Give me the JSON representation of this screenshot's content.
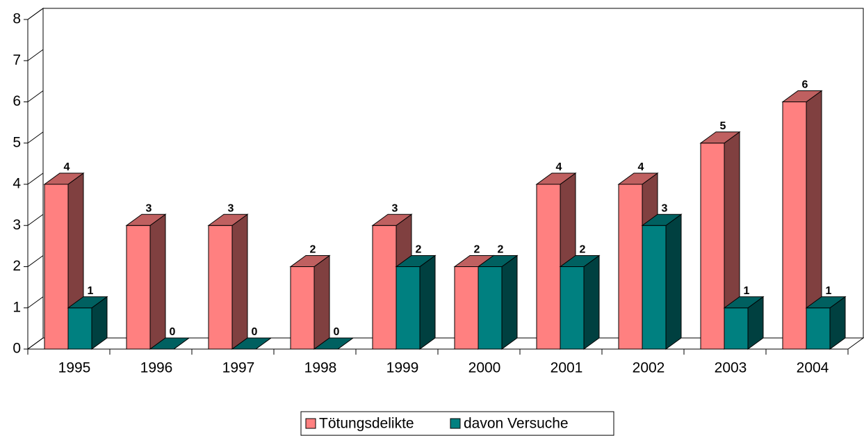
{
  "chart_data": {
    "type": "bar3d",
    "categories": [
      "1995",
      "1996",
      "1997",
      "1998",
      "1999",
      "2000",
      "2001",
      "2002",
      "2003",
      "2004"
    ],
    "series": [
      {
        "name": "Tötungsdelikte",
        "color": "#FF8080",
        "values": [
          4,
          3,
          3,
          2,
          3,
          2,
          4,
          4,
          5,
          6
        ]
      },
      {
        "name": "davon Versuche",
        "color": "#008080",
        "values": [
          1,
          0,
          0,
          0,
          2,
          2,
          2,
          3,
          1,
          1
        ]
      }
    ],
    "ylim": [
      0,
      8
    ],
    "yticks": [
      0,
      1,
      2,
      3,
      4,
      5,
      6,
      7,
      8
    ],
    "legend": "bottom"
  }
}
